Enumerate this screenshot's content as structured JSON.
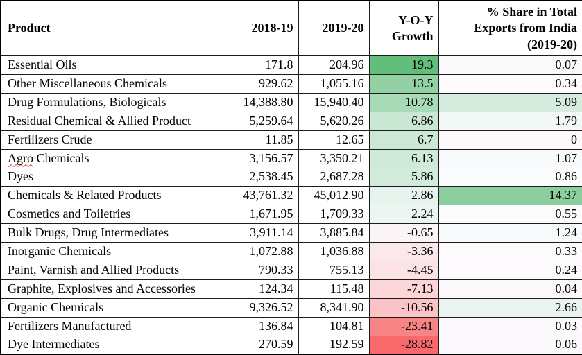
{
  "table": {
    "header": {
      "product": "Product",
      "col_2018_19": "2018-19",
      "col_2019_20": "2019-20",
      "growth_line1": "Y-O-Y",
      "growth_line2": "Growth",
      "share_line1": "% Share in Total",
      "share_line2": "Exports from India",
      "share_line3": "(2019-20)"
    },
    "rows": [
      {
        "product": "Essential Oils",
        "y2018_19": "171.8",
        "y2019_20": "204.96",
        "growth": "19.3",
        "growth_bg": "#63BE7B",
        "share": "0.07",
        "share_bg": "#FCF9FC",
        "spellcheck_word": ""
      },
      {
        "product": "Other Miscellaneous Chemicals",
        "y2018_19": "929.62",
        "y2019_20": "1,055.16",
        "growth": "13.5",
        "growth_bg": "#93D1A4",
        "share": "0.34",
        "share_bg": "#FCFAFD",
        "spellcheck_word": ""
      },
      {
        "product": "Drug Formulations, Biologicals",
        "y2018_19": "14,388.80",
        "y2019_20": "15,940.40",
        "growth": "10.78",
        "growth_bg": "#A9DAB8",
        "share": "5.09",
        "share_bg": "#D6ECDE",
        "spellcheck_word": ""
      },
      {
        "product": "Residual Chemical & Allied Product",
        "y2018_19": "5,259.64",
        "y2019_20": "5,620.26",
        "growth": "6.86",
        "growth_bg": "#C9E7D3",
        "share": "1.79",
        "share_bg": "#F1F8F5",
        "spellcheck_word": ""
      },
      {
        "product": "Fertilizers Crude",
        "y2018_19": "11.85",
        "y2019_20": "12.65",
        "growth": "6.7",
        "growth_bg": "#CBE8D4",
        "share": "0",
        "share_bg": "#FCF8FC",
        "spellcheck_word": ""
      },
      {
        "product": "Agro Chemicals",
        "y2018_19": "3,156.57",
        "y2019_20": "3,350.21",
        "growth": "6.13",
        "growth_bg": "#CFEAD8",
        "share": "1.07",
        "share_bg": "#F8FAFB",
        "spellcheck_word": "Agro"
      },
      {
        "product": "Dyes",
        "y2018_19": "2,538.45",
        "y2019_20": "2,687.28",
        "growth": "5.86",
        "growth_bg": "#D2EBDA",
        "share": "0.86",
        "share_bg": "#FBFCFE",
        "spellcheck_word": ""
      },
      {
        "product": "Chemicals & Related Products",
        "y2018_19": "43,761.32",
        "y2019_20": "45,012.90",
        "growth": "2.86",
        "growth_bg": "#E7F3ED",
        "share": "14.37",
        "share_bg": "#8CCE9E",
        "spellcheck_word": ""
      },
      {
        "product": "Cosmetics and Toiletries",
        "y2018_19": "1,671.95",
        "y2019_20": "1,709.33",
        "growth": "2.24",
        "growth_bg": "#ECF6F1",
        "share": "0.55",
        "share_bg": "#FCFBFE",
        "spellcheck_word": ""
      },
      {
        "product": "Bulk Drugs, Drug Intermediates",
        "y2018_19": "3,911.14",
        "y2019_20": "3,885.84",
        "growth": "-0.65",
        "growth_bg": "#FCF5F8",
        "share": "1.24",
        "share_bg": "#F7FAFA",
        "spellcheck_word": ""
      },
      {
        "product": "Inorganic Chemicals",
        "y2018_19": "1,072.88",
        "y2019_20": "1,036.88",
        "growth": "-3.36",
        "growth_bg": "#FBE8EB",
        "share": "0.33",
        "share_bg": "#FCFAFD",
        "spellcheck_word": ""
      },
      {
        "product": "Paint, Varnish and Allied Products",
        "y2018_19": "790.33",
        "y2019_20": "755.13",
        "growth": "-4.45",
        "growth_bg": "#FBE2E5",
        "share": "0.24",
        "share_bg": "#FCFAFD",
        "spellcheck_word": ""
      },
      {
        "product": "Graphite, Explosives and Accessories",
        "y2018_19": "124.34",
        "y2019_20": "115.48",
        "growth": "-7.13",
        "growth_bg": "#FBD5D8",
        "share": "0.04",
        "share_bg": "#FCF9FC",
        "spellcheck_word": ""
      },
      {
        "product": "Organic Chemicals",
        "y2018_19": "9,326.52",
        "y2019_20": "8,341.90",
        "growth": "-10.56",
        "growth_bg": "#FAC4C6",
        "share": "2.66",
        "share_bg": "#EAF4EF",
        "spellcheck_word": ""
      },
      {
        "product": "Fertilizers Manufactured",
        "y2018_19": "136.84",
        "y2019_20": "104.81",
        "growth": "-23.41",
        "growth_bg": "#F98486",
        "share": "0.03",
        "share_bg": "#FCF9FC",
        "spellcheck_word": ""
      },
      {
        "product": "Dye Intermediates",
        "y2018_19": "270.59",
        "y2019_20": "192.59",
        "growth": "-28.82",
        "growth_bg": "#F8696B",
        "share": "0.06",
        "share_bg": "#FCF9FC",
        "spellcheck_word": ""
      }
    ]
  },
  "colors": {
    "border": "#000000",
    "header_background": "#FFFFFF",
    "row_background": "#FFFFFF",
    "spellcheck_underline": "#E03C31",
    "color_scale": {
      "min_color": "#F8696B",
      "mid_color": "#FCFCFF",
      "max_color": "#63BE7B"
    }
  }
}
